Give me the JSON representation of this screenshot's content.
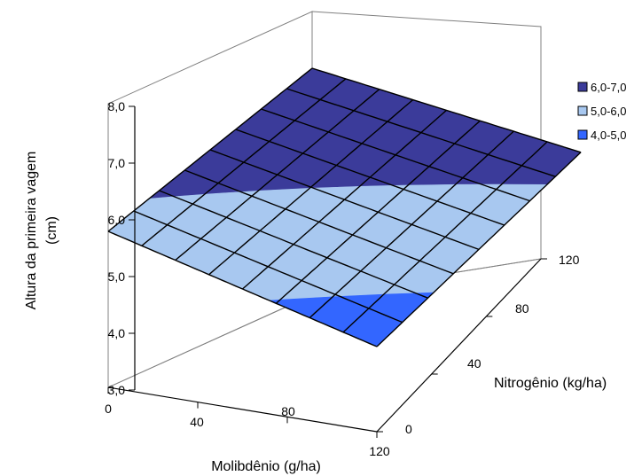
{
  "chart_data": {
    "type": "surface",
    "zlabel_line1": "Altura da primeira vagem",
    "zlabel_line2": "(cm)",
    "xlabel": "Molibdênio (g/ha)",
    "ylabel": "Nitrogênio (kg/ha)",
    "z_ticks": [
      "3,0",
      "4,0",
      "5,0",
      "6,0",
      "7,0",
      "8,0"
    ],
    "x_ticks": [
      "0",
      "40",
      "80",
      "120"
    ],
    "y_ticks": [
      "0",
      "40",
      "80",
      "120"
    ],
    "zlim": [
      3,
      8
    ],
    "xlim": [
      0,
      120
    ],
    "ylim": [
      0,
      120
    ],
    "grid_points": 9,
    "corner_values": {
      "x0_y0": 5.75,
      "x120_y0": 4.5,
      "x0_y120": 7.0,
      "x120_y120": 6.3
    },
    "legend": [
      {
        "label": "6,0-7,0",
        "color": "#3b3b9a"
      },
      {
        "label": "5,0-6,0",
        "color": "#a8c8f0"
      },
      {
        "label": "4,0-5,0",
        "color": "#3366ff"
      }
    ],
    "legend_position": "right"
  }
}
